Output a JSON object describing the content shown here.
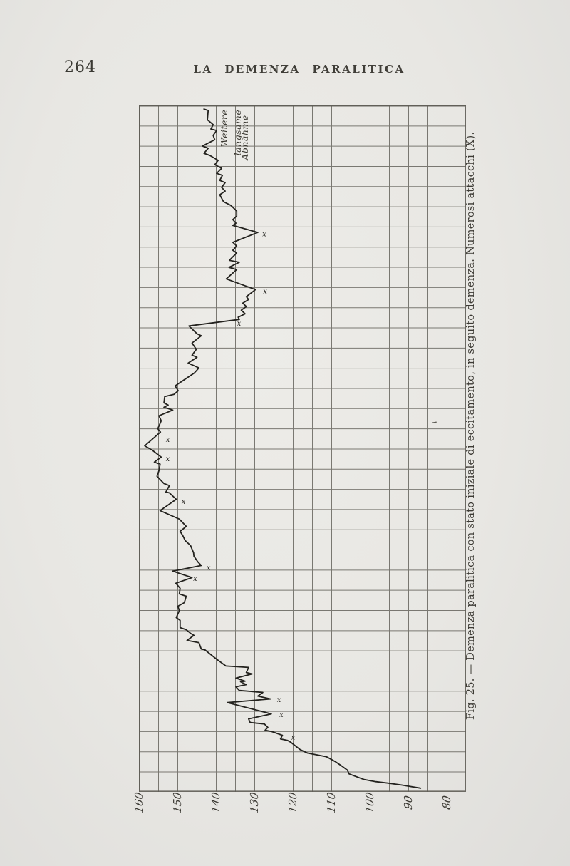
{
  "page": {
    "number": "264",
    "running_title": "LA DEMENZA PARALITICA"
  },
  "colors": {
    "paper": "#e8e7e3",
    "ink": "#23221e",
    "grid": "#5e5c55",
    "text": "#3a3933"
  },
  "chart_data": {
    "type": "line",
    "title": "Fig. 25. — Demenza paralitica con stato iniziale di eccitamento, in seguito demenza. Numerosi attacchi (X).",
    "orientation": "rotated 90° on page: weight axis runs left(160)→right(80) along bottom; time axis runs top→bottom with unlabeled grid rows",
    "xlabel": "",
    "ylabel": "peso (weight)",
    "weight_axis": {
      "max": 160,
      "min": 80,
      "ticks": [
        160,
        150,
        140,
        130,
        120,
        110,
        100,
        90,
        80
      ]
    },
    "time_axis": {
      "rows": 34,
      "tick_labels": []
    },
    "grid": {
      "columns": 17,
      "rows": 34,
      "units_per_column": 5,
      "on": true
    },
    "annotation": {
      "lines": [
        "Weitere",
        "langsame",
        "Abnahme"
      ]
    },
    "attack_glyph": "x",
    "series": [
      {
        "name": "weight-curve",
        "points": [
          [
            0.18,
            143.1
          ],
          [
            0.25,
            142.0
          ],
          [
            0.71,
            142.2
          ],
          [
            0.95,
            140.7
          ],
          [
            1.17,
            141.3
          ],
          [
            1.24,
            139.8
          ],
          [
            1.48,
            140.7
          ],
          [
            1.7,
            140.3
          ],
          [
            2.01,
            143.5
          ],
          [
            2.12,
            142.0
          ],
          [
            2.37,
            143.1
          ],
          [
            2.47,
            141.6
          ],
          [
            2.72,
            139.4
          ],
          [
            2.93,
            140.3
          ],
          [
            3.11,
            138.5
          ],
          [
            3.36,
            139.8
          ],
          [
            3.46,
            138.3
          ],
          [
            3.71,
            139.0
          ],
          [
            3.82,
            137.6
          ],
          [
            4.06,
            138.5
          ],
          [
            4.24,
            137.6
          ],
          [
            4.42,
            139.0
          ],
          [
            4.77,
            138.0
          ],
          [
            4.95,
            136.1
          ],
          [
            5.23,
            134.6
          ],
          [
            5.48,
            134.6
          ],
          [
            5.65,
            135.6
          ],
          [
            5.83,
            134.8
          ],
          [
            5.94,
            135.6
          ],
          [
            6.29,
            129.1
          ],
          [
            6.78,
            135.6
          ],
          [
            6.96,
            134.6
          ],
          [
            7.17,
            135.6
          ],
          [
            7.31,
            134.6
          ],
          [
            7.67,
            136.5
          ],
          [
            7.77,
            133.9
          ],
          [
            8.02,
            136.6
          ],
          [
            8.13,
            134.6
          ],
          [
            8.59,
            137.3
          ],
          [
            9.12,
            129.7
          ],
          [
            9.47,
            132.1
          ],
          [
            9.61,
            131.5
          ],
          [
            9.79,
            133.0
          ],
          [
            9.96,
            132.1
          ],
          [
            10.14,
            133.4
          ],
          [
            10.32,
            132.4
          ],
          [
            10.49,
            134.2
          ],
          [
            10.6,
            133.9
          ],
          [
            10.92,
            147.0
          ],
          [
            11.31,
            144.9
          ],
          [
            11.41,
            143.8
          ],
          [
            11.77,
            146.2
          ],
          [
            12.08,
            145.1
          ],
          [
            12.37,
            146.2
          ],
          [
            12.47,
            144.9
          ],
          [
            12.76,
            147.2
          ],
          [
            13.0,
            144.4
          ],
          [
            13.25,
            145.6
          ],
          [
            13.89,
            150.6
          ],
          [
            14.13,
            149.8
          ],
          [
            14.31,
            150.9
          ],
          [
            14.42,
            153.3
          ],
          [
            14.73,
            153.5
          ],
          [
            14.84,
            152.4
          ],
          [
            14.95,
            153.5
          ],
          [
            15.09,
            151.2
          ],
          [
            15.37,
            154.8
          ],
          [
            15.62,
            154.2
          ],
          [
            16.01,
            155.1
          ],
          [
            16.18,
            154.4
          ],
          [
            16.86,
            158.5
          ],
          [
            17.07,
            156.6
          ],
          [
            17.42,
            154.2
          ],
          [
            17.67,
            156.0
          ],
          [
            17.77,
            154.5
          ],
          [
            18.09,
            154.8
          ],
          [
            18.37,
            155.3
          ],
          [
            18.73,
            153.5
          ],
          [
            18.83,
            152.1
          ],
          [
            19.15,
            153.0
          ],
          [
            19.19,
            152.1
          ],
          [
            19.51,
            150.3
          ],
          [
            20.07,
            154.5
          ],
          [
            20.49,
            149.5
          ],
          [
            20.85,
            147.7
          ],
          [
            21.1,
            149.3
          ],
          [
            21.31,
            148.6
          ],
          [
            21.55,
            148.0
          ],
          [
            21.8,
            146.6
          ],
          [
            22.16,
            145.8
          ],
          [
            22.33,
            145.7
          ],
          [
            22.61,
            144.7
          ],
          [
            22.79,
            143.8
          ],
          [
            23.07,
            151.2
          ],
          [
            23.39,
            146.2
          ],
          [
            23.67,
            150.4
          ],
          [
            23.92,
            149.3
          ],
          [
            24.2,
            149.5
          ],
          [
            24.31,
            147.7
          ],
          [
            24.63,
            148.2
          ],
          [
            24.81,
            149.9
          ],
          [
            25.02,
            149.5
          ],
          [
            25.37,
            150.3
          ],
          [
            25.51,
            149.3
          ],
          [
            25.87,
            149.3
          ],
          [
            25.97,
            147.7
          ],
          [
            26.15,
            146.6
          ],
          [
            26.25,
            145.7
          ],
          [
            26.5,
            147.5
          ],
          [
            26.61,
            144.4
          ],
          [
            26.93,
            143.8
          ],
          [
            26.96,
            142.9
          ],
          [
            27.39,
            140.1
          ],
          [
            27.77,
            137.4
          ],
          [
            27.84,
            131.5
          ],
          [
            28.09,
            132.1
          ],
          [
            28.16,
            130.6
          ],
          [
            28.37,
            134.8
          ],
          [
            28.52,
            132.4
          ],
          [
            28.55,
            133.6
          ],
          [
            28.69,
            132.1
          ],
          [
            28.8,
            134.8
          ],
          [
            28.98,
            133.9
          ],
          [
            29.08,
            127.8
          ],
          [
            29.26,
            129.1
          ],
          [
            29.4,
            125.8
          ],
          [
            29.58,
            137.0
          ],
          [
            30.14,
            125.6
          ],
          [
            30.39,
            131.5
          ],
          [
            30.57,
            131.1
          ],
          [
            30.64,
            127.4
          ],
          [
            30.81,
            126.5
          ],
          [
            30.95,
            127.2
          ],
          [
            31.02,
            125.4
          ],
          [
            31.2,
            122.7
          ],
          [
            31.38,
            123.2
          ],
          [
            31.45,
            121.4
          ],
          [
            31.55,
            120.5
          ],
          [
            31.91,
            118.1
          ],
          [
            32.08,
            116.2
          ],
          [
            32.26,
            111.3
          ],
          [
            32.51,
            108.9
          ],
          [
            32.76,
            107.0
          ],
          [
            32.93,
            105.8
          ],
          [
            33.11,
            105.4
          ],
          [
            33.22,
            103.9
          ],
          [
            33.39,
            101.5
          ],
          [
            33.5,
            98.4
          ],
          [
            33.57,
            95.3
          ],
          [
            33.67,
            91.6
          ],
          [
            33.82,
            86.8
          ]
        ]
      }
    ],
    "attacks": [
      [
        6.36,
        127.4
      ],
      [
        9.19,
        127.2
      ],
      [
        10.78,
        134.0
      ],
      [
        16.54,
        152.5
      ],
      [
        17.49,
        152.5
      ],
      [
        19.61,
        148.4
      ],
      [
        22.9,
        141.9
      ],
      [
        23.43,
        145.4
      ],
      [
        29.43,
        123.6
      ],
      [
        30.18,
        123.0
      ],
      [
        31.31,
        119.9
      ]
    ],
    "speck": [
      15.72,
      83.2
    ]
  }
}
